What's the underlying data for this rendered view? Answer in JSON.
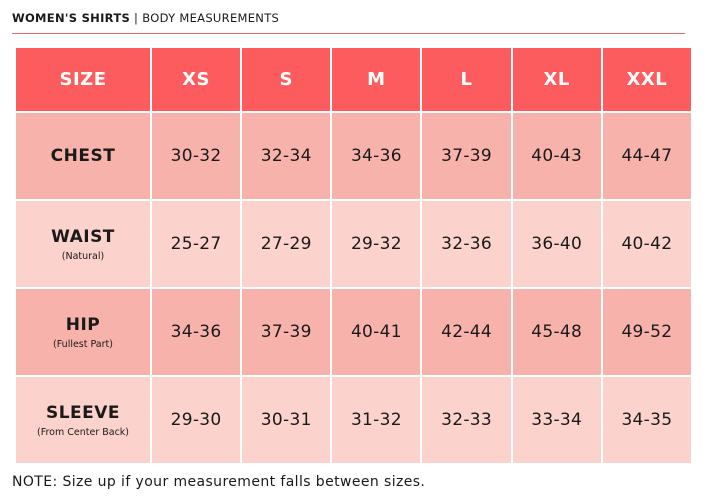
{
  "header": {
    "title": "WOMEN'S SHIRTS",
    "separator": "|",
    "subtitle": "BODY MEASUREMENTS"
  },
  "colors": {
    "header_row": "#fd5c5e",
    "row_dark": "#f8b2ac",
    "row_light": "#fcd2cc",
    "rule": "#e56a6a"
  },
  "table": {
    "corner_label": "SIZE",
    "sizes": [
      "XS",
      "S",
      "M",
      "L",
      "XL",
      "XXL"
    ],
    "rows": [
      {
        "name": "CHEST",
        "sub": "",
        "values": [
          "30-32",
          "32-34",
          "34-36",
          "37-39",
          "40-43",
          "44-47"
        ]
      },
      {
        "name": "WAIST",
        "sub": "(Natural)",
        "values": [
          "25-27",
          "27-29",
          "29-32",
          "32-36",
          "36-40",
          "40-42"
        ]
      },
      {
        "name": "HIP",
        "sub": "(Fullest Part)",
        "values": [
          "34-36",
          "37-39",
          "40-41",
          "42-44",
          "45-48",
          "49-52"
        ]
      },
      {
        "name": "SLEEVE",
        "sub": "(From Center Back)",
        "values": [
          "29-30",
          "30-31",
          "31-32",
          "32-33",
          "33-34",
          "34-35"
        ]
      }
    ]
  },
  "note": "NOTE: Size up if your measurement falls between sizes."
}
